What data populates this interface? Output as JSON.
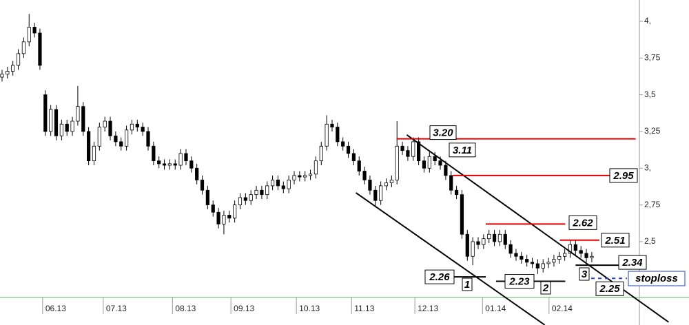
{
  "chart_data": {
    "type": "candlestick",
    "open": [
      3.62,
      3.64,
      3.66,
      3.7,
      3.78,
      3.86,
      3.96,
      3.92,
      3.5,
      3.25,
      3.4,
      3.22,
      3.3,
      3.25,
      3.32,
      3.42,
      3.25,
      3.05,
      3.15,
      3.28,
      3.32,
      3.22,
      3.18,
      3.15,
      3.26,
      3.3,
      3.28,
      3.25,
      3.15,
      3.05,
      3.03,
      3.02,
      3.03,
      3.02,
      3.1,
      3.05,
      3.0,
      2.92,
      2.85,
      2.75,
      2.7,
      2.62,
      2.68,
      2.66,
      2.75,
      2.8,
      2.78,
      2.82,
      2.85,
      2.82,
      2.88,
      2.92,
      2.88,
      2.86,
      2.92,
      2.95,
      2.94,
      2.95,
      2.96,
      3.05,
      3.15,
      3.3,
      3.28,
      3.18,
      3.15,
      3.1,
      3.05,
      2.98,
      2.92,
      2.85,
      2.78,
      2.88,
      2.9,
      2.92,
      3.15,
      3.12,
      3.08,
      3.18,
      3.05,
      3.0,
      3.08,
      3.05,
      3.02,
      2.95,
      2.85,
      2.82,
      2.55,
      2.4,
      2.5,
      2.48,
      2.52,
      2.55,
      2.5,
      2.55,
      2.48,
      2.42,
      2.4,
      2.38,
      2.36,
      2.35,
      2.32,
      2.35,
      2.36,
      2.38,
      2.4,
      2.42,
      2.48,
      2.44,
      2.42,
      2.39
    ],
    "high": [
      3.67,
      3.69,
      3.73,
      3.81,
      3.89,
      4.05,
      3.99,
      3.95,
      3.53,
      3.43,
      3.43,
      3.33,
      3.33,
      3.35,
      3.56,
      3.45,
      3.28,
      3.18,
      3.31,
      3.35,
      3.35,
      3.25,
      3.21,
      3.29,
      3.33,
      3.33,
      3.31,
      3.28,
      3.18,
      3.08,
      3.06,
      3.06,
      3.06,
      3.13,
      3.13,
      3.08,
      3.03,
      2.95,
      2.88,
      2.78,
      2.73,
      2.71,
      2.71,
      2.78,
      2.83,
      2.83,
      2.85,
      2.88,
      2.88,
      2.91,
      2.95,
      2.95,
      2.91,
      2.95,
      2.98,
      2.98,
      2.98,
      2.99,
      3.08,
      3.18,
      3.36,
      3.33,
      3.31,
      3.21,
      3.18,
      3.13,
      3.08,
      3.01,
      2.95,
      2.88,
      2.91,
      2.93,
      2.95,
      3.32,
      3.18,
      3.15,
      3.21,
      3.21,
      3.08,
      3.11,
      3.11,
      3.08,
      3.05,
      2.98,
      2.88,
      2.85,
      2.58,
      2.53,
      2.53,
      2.55,
      2.58,
      2.58,
      2.58,
      2.58,
      2.51,
      2.45,
      2.43,
      2.41,
      2.39,
      2.38,
      2.38,
      2.39,
      2.41,
      2.43,
      2.45,
      2.51,
      2.51,
      2.47,
      2.45,
      2.43
    ],
    "low": [
      3.59,
      3.61,
      3.63,
      3.67,
      3.75,
      3.83,
      3.89,
      3.67,
      3.22,
      3.22,
      3.19,
      3.19,
      3.22,
      3.22,
      3.29,
      3.22,
      3.02,
      3.02,
      3.12,
      3.25,
      3.19,
      3.15,
      3.12,
      3.12,
      3.23,
      3.25,
      3.22,
      3.12,
      3.02,
      3.0,
      2.99,
      2.99,
      2.99,
      2.99,
      3.02,
      2.97,
      2.89,
      2.82,
      2.72,
      2.67,
      2.59,
      2.55,
      2.63,
      2.63,
      2.72,
      2.75,
      2.75,
      2.79,
      2.79,
      2.79,
      2.85,
      2.85,
      2.83,
      2.83,
      2.89,
      2.91,
      2.91,
      2.92,
      2.93,
      3.02,
      3.12,
      3.25,
      3.15,
      3.12,
      3.07,
      3.02,
      2.95,
      2.89,
      2.82,
      2.74,
      2.75,
      2.85,
      2.87,
      2.89,
      3.09,
      3.05,
      3.05,
      3.02,
      2.97,
      2.97,
      3.02,
      2.99,
      2.92,
      2.82,
      2.79,
      2.52,
      2.37,
      2.34,
      2.45,
      2.45,
      2.49,
      2.47,
      2.47,
      2.45,
      2.39,
      2.37,
      2.35,
      2.33,
      2.32,
      2.28,
      2.29,
      2.32,
      2.33,
      2.35,
      2.37,
      2.39,
      2.41,
      2.39,
      2.36,
      2.36
    ],
    "close": [
      3.64,
      3.66,
      3.7,
      3.78,
      3.86,
      3.96,
      3.92,
      3.7,
      3.25,
      3.4,
      3.22,
      3.3,
      3.25,
      3.32,
      3.42,
      3.25,
      3.05,
      3.15,
      3.28,
      3.32,
      3.22,
      3.18,
      3.15,
      3.26,
      3.3,
      3.28,
      3.25,
      3.15,
      3.05,
      3.03,
      3.02,
      3.03,
      3.02,
      3.1,
      3.05,
      3.0,
      2.92,
      2.85,
      2.75,
      2.7,
      2.62,
      2.68,
      2.66,
      2.75,
      2.8,
      2.78,
      2.82,
      2.85,
      2.82,
      2.88,
      2.92,
      2.88,
      2.86,
      2.92,
      2.95,
      2.94,
      2.95,
      2.96,
      3.05,
      3.15,
      3.3,
      3.28,
      3.18,
      3.15,
      3.1,
      3.05,
      2.98,
      2.92,
      2.85,
      2.78,
      2.88,
      2.9,
      2.92,
      3.15,
      3.12,
      3.08,
      3.18,
      3.05,
      3.0,
      3.08,
      3.05,
      3.02,
      2.95,
      2.85,
      2.82,
      2.55,
      2.4,
      2.5,
      2.48,
      2.52,
      2.55,
      2.5,
      2.55,
      2.48,
      2.42,
      2.4,
      2.38,
      2.36,
      2.35,
      2.32,
      2.35,
      2.36,
      2.38,
      2.4,
      2.42,
      2.48,
      2.44,
      2.42,
      2.39,
      2.4
    ],
    "xlim": [
      -0.38,
      117.8
    ],
    "ylim": [
      2.12,
      4.145
    ],
    "xticks": [
      {
        "value": 7.5,
        "label": "06.13"
      },
      {
        "value": 18.7,
        "label": "07.13"
      },
      {
        "value": 31.5,
        "label": "08.13"
      },
      {
        "value": 42.3,
        "label": "09.13"
      },
      {
        "value": 54.4,
        "label": "10.13"
      },
      {
        "value": 64.6,
        "label": "11.13"
      },
      {
        "value": 76.3,
        "label": "12.13"
      },
      {
        "value": 88.8,
        "label": "01.14"
      },
      {
        "value": 101.1,
        "label": "02.14"
      }
    ],
    "yticks": [
      {
        "value": 4,
        "label": "4,"
      },
      {
        "value": 3.75,
        "label": "3,75"
      },
      {
        "value": 3.5,
        "label": "3,5"
      },
      {
        "value": 3.25,
        "label": "3,25"
      },
      {
        "value": 3,
        "label": "3,"
      },
      {
        "value": 2.75,
        "label": "2,75"
      },
      {
        "value": 2.5,
        "label": "2,5"
      }
    ],
    "levels": [
      {
        "value": 3.2,
        "label": "3.20",
        "color": "#e00000",
        "from": 72.9,
        "to": 117.1
      },
      {
        "value": 3.11,
        "label": "3.11"
      },
      {
        "value": 2.95,
        "label": "2.95",
        "color": "#e00000",
        "from": 83.3,
        "to": 117.1
      },
      {
        "value": 2.62,
        "label": "2.62",
        "color": "#e00000",
        "from": 89.4,
        "to": 104.1
      },
      {
        "value": 2.51,
        "label": "2.51",
        "color": "#e00000",
        "from": 103.1,
        "to": 110.4
      },
      {
        "value": 2.34,
        "label": "2.34",
        "color": "#000000",
        "from": 106,
        "to": 114.9
      },
      {
        "value": 2.26,
        "label": "2.26",
        "color": "#000000",
        "from": 82.4,
        "to": 89.4
      },
      {
        "value": 2.23,
        "label": "2.23",
        "color": "#000000",
        "from": 91.3,
        "to": 104.1
      },
      {
        "value": 2.25,
        "label": "2.25",
        "color": "#2040c0",
        "from": 108.9,
        "to": 115.5,
        "dashed": true
      }
    ],
    "stoploss_label": "stoploss",
    "trendlines": [
      {
        "x": [
          74.8,
          123.2
        ],
        "y": [
          3.227,
          1.952
        ]
      },
      {
        "x": [
          65.4,
          100.3
        ],
        "y": [
          2.833,
          1.933
        ]
      }
    ],
    "wave_labels": [
      "1",
      "2",
      "3"
    ]
  }
}
